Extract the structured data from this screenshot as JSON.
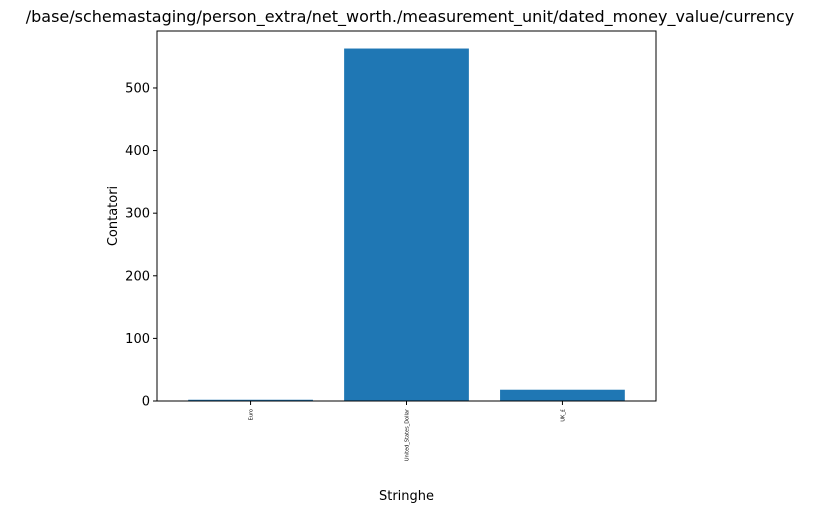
{
  "chart_data": {
    "type": "bar",
    "title": "/base/schemastaging/person_extra/net_worth./measurement_unit/dated_money_value/currency",
    "xlabel": "Stringhe",
    "ylabel": "Contatori",
    "categories": [
      "Euro",
      "United_States_Dollar",
      "UK_£"
    ],
    "values": [
      2,
      563,
      18
    ],
    "ylim": [
      0,
      591
    ],
    "yticks": [
      0,
      100,
      200,
      300,
      400,
      500
    ],
    "grid": false,
    "bar_color": "#1f77b4"
  }
}
